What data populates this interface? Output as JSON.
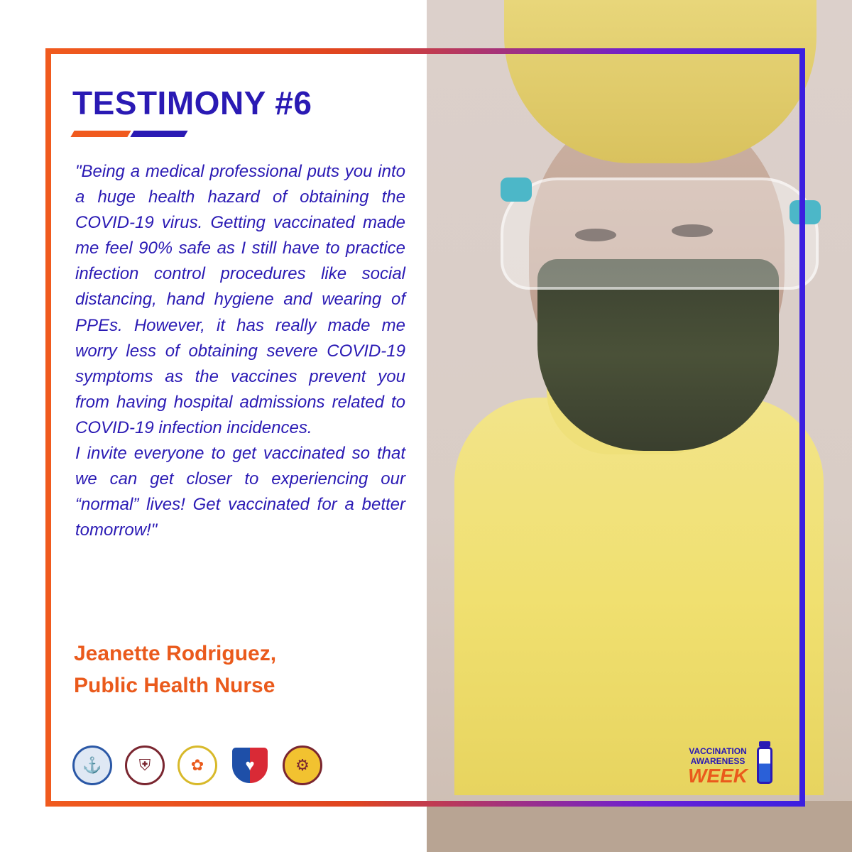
{
  "title": "TESTIMONY #6",
  "quote": {
    "paragraph1": "\"Being a medical professional puts you into a huge health hazard of obtaining the COVID-19 virus. Getting vaccinated made me feel 90% safe as I still have to practice infection control procedures like social distancing, hand hygiene and wearing of PPEs. However, it has really made me worry less of obtaining severe COVID-19 symptoms as the vaccines prevent you from having hospital admissions related to COVID-19 infection incidences.",
    "paragraph2": "I invite everyone to get vaccinated so that we can get closer to experiencing our “normal” lives! Get vaccinated for a better tomorrow!\""
  },
  "author": {
    "name": "Jeanette Rodriguez,",
    "role": "Public Health Nurse"
  },
  "campaign": {
    "line1": "VACCINATION",
    "line2": "AWARENESS",
    "line3": "WEEK"
  },
  "logos": [
    "seal-logo-1",
    "seal-logo-2",
    "puzzle-logo",
    "crest-logo",
    "gear-seal-logo"
  ],
  "colors": {
    "blue": "#2a1ab4",
    "orange": "#ea5a1c",
    "gown_yellow": "#f0e070"
  }
}
